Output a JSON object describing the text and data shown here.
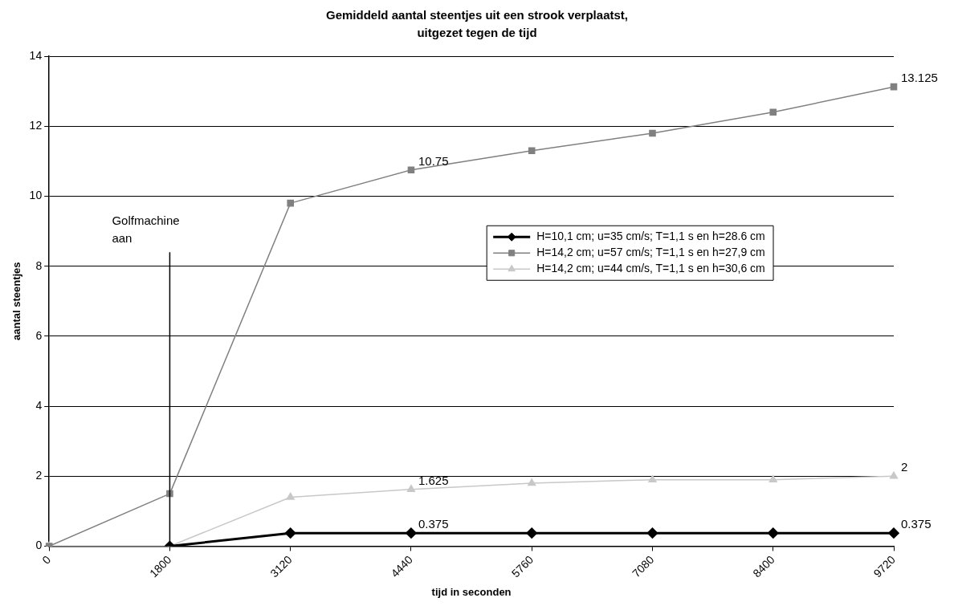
{
  "chart_data": {
    "type": "line",
    "title": "Gemiddeld aantal steentjes uit een strook verplaatst, uitgezet tegen de tijd",
    "xlabel": "tijd in seconden",
    "ylabel": "aantal steentjes",
    "categories": [
      "0",
      "1800",
      "3120",
      "4440",
      "5760",
      "7080",
      "8400",
      "9720"
    ],
    "ylim": [
      0,
      14
    ],
    "yticks": [
      0,
      2,
      4,
      6,
      8,
      10,
      12,
      14
    ],
    "grid": "y",
    "legend": "right",
    "series": [
      {
        "name": "H=10,1 cm; u=35 cm/s; T=1,1 s en h=28.6 cm",
        "color": "#000000",
        "marker": "diamond",
        "values": [
          null,
          0,
          0.375,
          0.375,
          0.375,
          0.375,
          0.375,
          0.375
        ],
        "value_labels": [
          null,
          null,
          null,
          "0.375",
          null,
          null,
          null,
          "0.375"
        ]
      },
      {
        "name": "H=14,2 cm; u=57 cm/s; T=1,1 s en h=27,9 cm",
        "color": "#808080",
        "marker": "square",
        "values": [
          0,
          1.5,
          9.8,
          10.75,
          11.3,
          11.8,
          12.4,
          13.125
        ],
        "value_labels": [
          null,
          null,
          null,
          "10.75",
          null,
          null,
          null,
          "13.125"
        ]
      },
      {
        "name": "H=14,2 cm; u=44 cm/s, T=1,1 s en h=30,6 cm",
        "color": "#c8c8c8",
        "marker": "triangle",
        "values": [
          0,
          0,
          1.4,
          1.625,
          1.8,
          1.9,
          1.9,
          2
        ],
        "value_labels": [
          null,
          null,
          null,
          "1.625",
          null,
          null,
          null,
          "2"
        ]
      }
    ],
    "ref_lines": [
      {
        "axis": "x",
        "value": "1800",
        "label": "Golfmachine aan",
        "color": "#000000"
      }
    ]
  }
}
